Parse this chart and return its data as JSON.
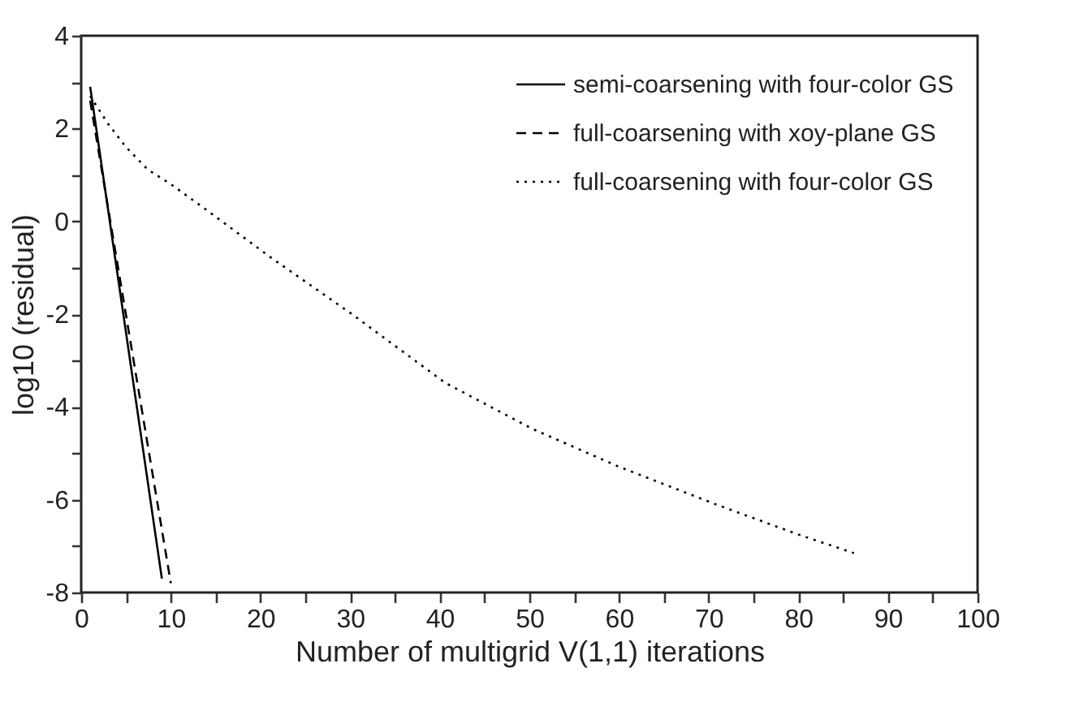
{
  "chart_data": {
    "type": "line",
    "xlabel": "Number of multigrid V(1,1) iterations",
    "ylabel": "log10 (residual)",
    "xlim": [
      0,
      100
    ],
    "ylim": [
      -8,
      4
    ],
    "xticks": [
      0,
      {
        "value": 5,
        "label": null
      },
      10,
      {
        "value": 15,
        "label": null
      },
      20,
      {
        "value": 25,
        "label": null
      },
      30,
      {
        "value": 35,
        "label": null
      },
      40,
      {
        "value": 45,
        "label": null
      },
      50,
      {
        "value": 55,
        "label": null
      },
      60,
      {
        "value": 65,
        "label": null
      },
      70,
      {
        "value": 75,
        "label": null
      },
      80,
      {
        "value": 85,
        "label": null
      },
      90,
      {
        "value": 95,
        "label": null
      },
      100
    ],
    "yticks": [
      -8,
      {
        "value": -7,
        "label": null
      },
      -6,
      {
        "value": -5,
        "label": null
      },
      -4,
      {
        "value": -3,
        "label": null
      },
      -2,
      {
        "value": -1,
        "label": null
      },
      0,
      {
        "value": 1,
        "label": null
      },
      2,
      {
        "value": 3,
        "label": null
      },
      4
    ],
    "grid": false,
    "legend": "top right",
    "marker": "none",
    "series": [
      {
        "name": "semi-coarsening with four-color GS",
        "color": "#000000",
        "line_style": "solid",
        "x": [
          1,
          9
        ],
        "values": [
          2.9,
          -7.7
        ]
      },
      {
        "name": "full-coarsening with xoy-plane GS",
        "color": "#000000",
        "line_style": "dashed",
        "x": [
          1,
          10
        ],
        "values": [
          2.6,
          -7.8
        ]
      },
      {
        "name": "full-coarsening with four-color GS",
        "color": "#000000",
        "line_style": "dotted",
        "x": [
          1,
          3,
          5,
          7.4,
          10,
          13.8,
          21.3,
          30.2,
          40.6,
          50.3,
          60,
          70.8,
          80,
          86.2
        ],
        "values": [
          2.7,
          2.1,
          1.6,
          1.12,
          0.8,
          0.27,
          -0.8,
          -2.0,
          -3.48,
          -4.47,
          -5.29,
          -6.1,
          -6.75,
          -7.15
        ]
      }
    ]
  }
}
